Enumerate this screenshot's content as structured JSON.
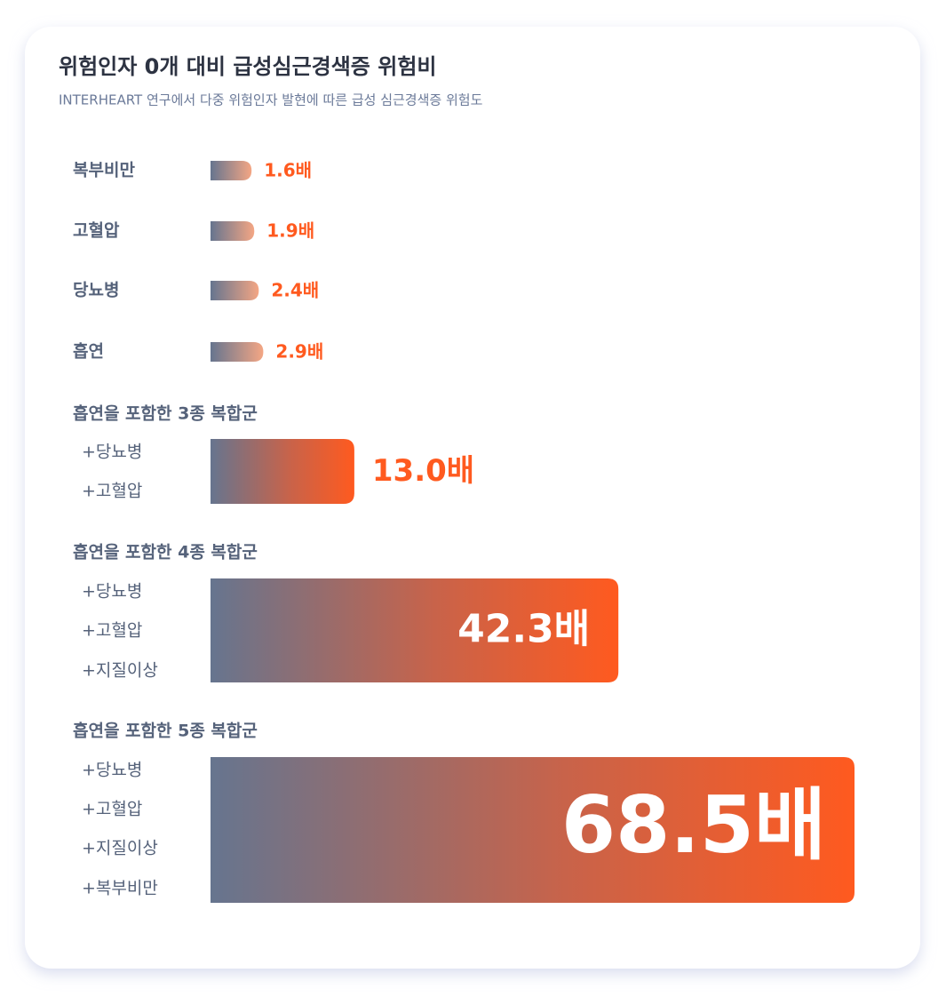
{
  "chart_data": {
    "type": "bar",
    "title": "위험인자 0개 대비 급성심근경색증 위험비",
    "subtitle": "INTERHEART 연구에서 다중 위험인자 발현에 따른 급성 심근경색증 위험도",
    "categories": [
      "복부비만",
      "고혈압",
      "당뇨병",
      "흡연",
      "흡연을 포함한 3종 복합군",
      "흡연을 포함한 4종 복합군",
      "흡연을 포함한 5종 복합군"
    ],
    "components": [
      [],
      [],
      [],
      [],
      [
        "+당뇨병",
        "+고혈압"
      ],
      [
        "+당뇨병",
        "+고혈압",
        "+지질이상"
      ],
      [
        "+당뇨병",
        "+고혈압",
        "+지질이상",
        "+복부비만"
      ]
    ],
    "values": [
      1.6,
      1.9,
      2.4,
      2.9,
      13.0,
      42.3,
      68.5
    ],
    "value_labels": [
      "1.6배",
      "1.9배",
      "2.4배",
      "2.9배",
      "13.0배",
      "42.3배",
      "68.5배"
    ],
    "color_start": "#66758f",
    "color_end": "#ff5a1f",
    "color_end_light": "#f4a684"
  }
}
